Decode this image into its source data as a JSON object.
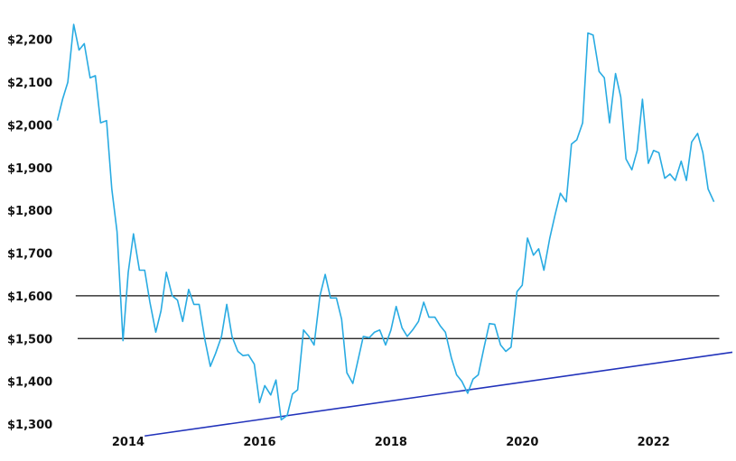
{
  "chart_data": {
    "type": "line",
    "title": "",
    "xlabel": "",
    "ylabel": "",
    "grid": false,
    "legend": "none",
    "ylim": [
      1300,
      2250
    ],
    "xlim": [
      2012.9,
      2023.2
    ],
    "y_tick_labels": [
      {
        "value": 2200,
        "label": "$2,200"
      },
      {
        "value": 2100,
        "label": "$2,100"
      },
      {
        "value": 2000,
        "label": "$2,000"
      },
      {
        "value": 1900,
        "label": "$1,900"
      },
      {
        "value": 1800,
        "label": "$1,800"
      },
      {
        "value": 1700,
        "label": "$1,700"
      },
      {
        "value": 1600,
        "label": "$1,600"
      },
      {
        "value": 1500,
        "label": "$1,500"
      },
      {
        "value": 1400,
        "label": "$1,400"
      },
      {
        "value": 1300,
        "label": "$1,300"
      }
    ],
    "x_tick_labels": [
      {
        "value": 2014,
        "label": "2014"
      },
      {
        "value": 2016,
        "label": "2016"
      },
      {
        "value": 2018,
        "label": "2018"
      },
      {
        "value": 2020,
        "label": "2020"
      },
      {
        "value": 2022,
        "label": "2022"
      }
    ],
    "series": [
      {
        "color": "#29abe2",
        "points": [
          [
            2012.92,
            2010
          ],
          [
            2013.0,
            2060
          ],
          [
            2013.08,
            2100
          ],
          [
            2013.17,
            2235
          ],
          [
            2013.25,
            2175
          ],
          [
            2013.33,
            2190
          ],
          [
            2013.42,
            2110
          ],
          [
            2013.5,
            2115
          ],
          [
            2013.58,
            2005
          ],
          [
            2013.67,
            2010
          ],
          [
            2013.75,
            1850
          ],
          [
            2013.83,
            1750
          ],
          [
            2013.92,
            1495
          ],
          [
            2014.0,
            1655
          ],
          [
            2014.08,
            1745
          ],
          [
            2014.17,
            1660
          ],
          [
            2014.25,
            1660
          ],
          [
            2014.33,
            1585
          ],
          [
            2014.42,
            1515
          ],
          [
            2014.5,
            1565
          ],
          [
            2014.58,
            1655
          ],
          [
            2014.67,
            1600
          ],
          [
            2014.75,
            1590
          ],
          [
            2014.83,
            1540
          ],
          [
            2014.92,
            1615
          ],
          [
            2015.0,
            1580
          ],
          [
            2015.08,
            1580
          ],
          [
            2015.17,
            1495
          ],
          [
            2015.25,
            1435
          ],
          [
            2015.33,
            1465
          ],
          [
            2015.42,
            1505
          ],
          [
            2015.5,
            1580
          ],
          [
            2015.58,
            1505
          ],
          [
            2015.67,
            1470
          ],
          [
            2015.75,
            1460
          ],
          [
            2015.83,
            1462
          ],
          [
            2015.92,
            1440
          ],
          [
            2016.0,
            1350
          ],
          [
            2016.08,
            1390
          ],
          [
            2016.17,
            1368
          ],
          [
            2016.25,
            1403
          ],
          [
            2016.33,
            1310
          ],
          [
            2016.42,
            1320
          ],
          [
            2016.5,
            1370
          ],
          [
            2016.58,
            1380
          ],
          [
            2016.67,
            1520
          ],
          [
            2016.75,
            1505
          ],
          [
            2016.83,
            1485
          ],
          [
            2016.92,
            1600
          ],
          [
            2017.0,
            1650
          ],
          [
            2017.08,
            1595
          ],
          [
            2017.17,
            1595
          ],
          [
            2017.25,
            1545
          ],
          [
            2017.33,
            1420
          ],
          [
            2017.42,
            1395
          ],
          [
            2017.5,
            1450
          ],
          [
            2017.58,
            1505
          ],
          [
            2017.67,
            1502
          ],
          [
            2017.75,
            1515
          ],
          [
            2017.83,
            1520
          ],
          [
            2017.92,
            1485
          ],
          [
            2018.0,
            1520
          ],
          [
            2018.08,
            1575
          ],
          [
            2018.17,
            1525
          ],
          [
            2018.25,
            1505
          ],
          [
            2018.33,
            1520
          ],
          [
            2018.42,
            1540
          ],
          [
            2018.5,
            1585
          ],
          [
            2018.58,
            1550
          ],
          [
            2018.67,
            1550
          ],
          [
            2018.75,
            1530
          ],
          [
            2018.83,
            1515
          ],
          [
            2018.92,
            1455
          ],
          [
            2019.0,
            1415
          ],
          [
            2019.08,
            1400
          ],
          [
            2019.17,
            1372
          ],
          [
            2019.25,
            1405
          ],
          [
            2019.33,
            1415
          ],
          [
            2019.42,
            1480
          ],
          [
            2019.5,
            1535
          ],
          [
            2019.58,
            1533
          ],
          [
            2019.67,
            1485
          ],
          [
            2019.75,
            1470
          ],
          [
            2019.83,
            1480
          ],
          [
            2019.92,
            1610
          ],
          [
            2020.0,
            1625
          ],
          [
            2020.08,
            1735
          ],
          [
            2020.17,
            1695
          ],
          [
            2020.25,
            1710
          ],
          [
            2020.33,
            1660
          ],
          [
            2020.42,
            1735
          ],
          [
            2020.5,
            1790
          ],
          [
            2020.58,
            1840
          ],
          [
            2020.67,
            1820
          ],
          [
            2020.75,
            1955
          ],
          [
            2020.83,
            1965
          ],
          [
            2020.92,
            2005
          ],
          [
            2021.0,
            2215
          ],
          [
            2021.08,
            2210
          ],
          [
            2021.17,
            2125
          ],
          [
            2021.25,
            2110
          ],
          [
            2021.33,
            2005
          ],
          [
            2021.42,
            2120
          ],
          [
            2021.5,
            2065
          ],
          [
            2021.58,
            1920
          ],
          [
            2021.67,
            1895
          ],
          [
            2021.75,
            1940
          ],
          [
            2021.83,
            2060
          ],
          [
            2021.92,
            1910
          ],
          [
            2022.0,
            1940
          ],
          [
            2022.08,
            1935
          ],
          [
            2022.17,
            1875
          ],
          [
            2022.25,
            1885
          ],
          [
            2022.33,
            1870
          ],
          [
            2022.42,
            1915
          ],
          [
            2022.5,
            1870
          ],
          [
            2022.58,
            1960
          ],
          [
            2022.67,
            1980
          ],
          [
            2022.75,
            1935
          ],
          [
            2022.83,
            1850
          ],
          [
            2022.92,
            1820
          ]
        ]
      }
    ],
    "reference_lines": [
      {
        "kind": "horizontal",
        "value": 1600,
        "from": 2013.2,
        "to": 2023.0,
        "color": "#111111"
      },
      {
        "kind": "horizontal",
        "value": 1500,
        "from": 2013.23,
        "to": 2023.0,
        "color": "#111111"
      },
      {
        "kind": "trendline",
        "x1": 2014.25,
        "y1": 1272,
        "x2": 2023.2,
        "y2": 1468,
        "color": "#2233bb"
      }
    ]
  }
}
